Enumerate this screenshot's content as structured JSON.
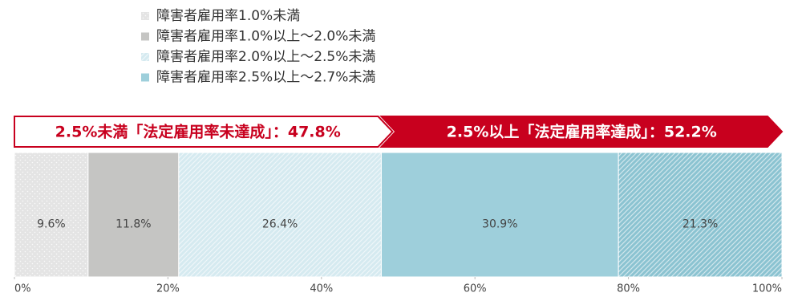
{
  "chart_data": {
    "type": "stacked-bar-100",
    "xlim": [
      0,
      100
    ],
    "xticks": [
      {
        "value": 0,
        "label": "0%"
      },
      {
        "value": 20,
        "label": "20%"
      },
      {
        "value": 40,
        "label": "40%"
      },
      {
        "value": 60,
        "label": "60%"
      },
      {
        "value": 80,
        "label": "80%"
      },
      {
        "value": 100,
        "label": "100%"
      }
    ],
    "series": [
      {
        "name": "障害者雇用率1.0%未満",
        "color": "#e4e4e4",
        "pattern": "dots",
        "values": [
          9.6
        ],
        "value_labels": [
          "9.6%"
        ]
      },
      {
        "name": "障害者雇用率1.0%以上～2.0%未満",
        "color": "#c5c5c3",
        "pattern": "solid",
        "values": [
          11.8
        ],
        "value_labels": [
          "11.8%"
        ]
      },
      {
        "name": "障害者雇用率2.0%以上～2.5%未満",
        "color": "#d5eaf0",
        "pattern": "hatch",
        "values": [
          26.4
        ],
        "value_labels": [
          "26.4%"
        ]
      },
      {
        "name": "障害者雇用率2.5%以上～2.7%未満",
        "color": "#9ecfdb",
        "pattern": "solid",
        "values": [
          30.9
        ],
        "value_labels": [
          "30.9%"
        ]
      },
      {
        "name": null,
        "color": "#8bc3d1",
        "pattern": "hatch",
        "values": [
          21.3
        ],
        "value_labels": [
          "21.3%"
        ]
      }
    ],
    "annotations": [
      {
        "label": "2.5%未満「法定雇用率未達成」：47.8%",
        "value": 47.8,
        "style": "outline"
      },
      {
        "label": "2.5%以上「法定雇用率達成」：52.2%",
        "value": 52.2,
        "style": "filled"
      }
    ]
  }
}
